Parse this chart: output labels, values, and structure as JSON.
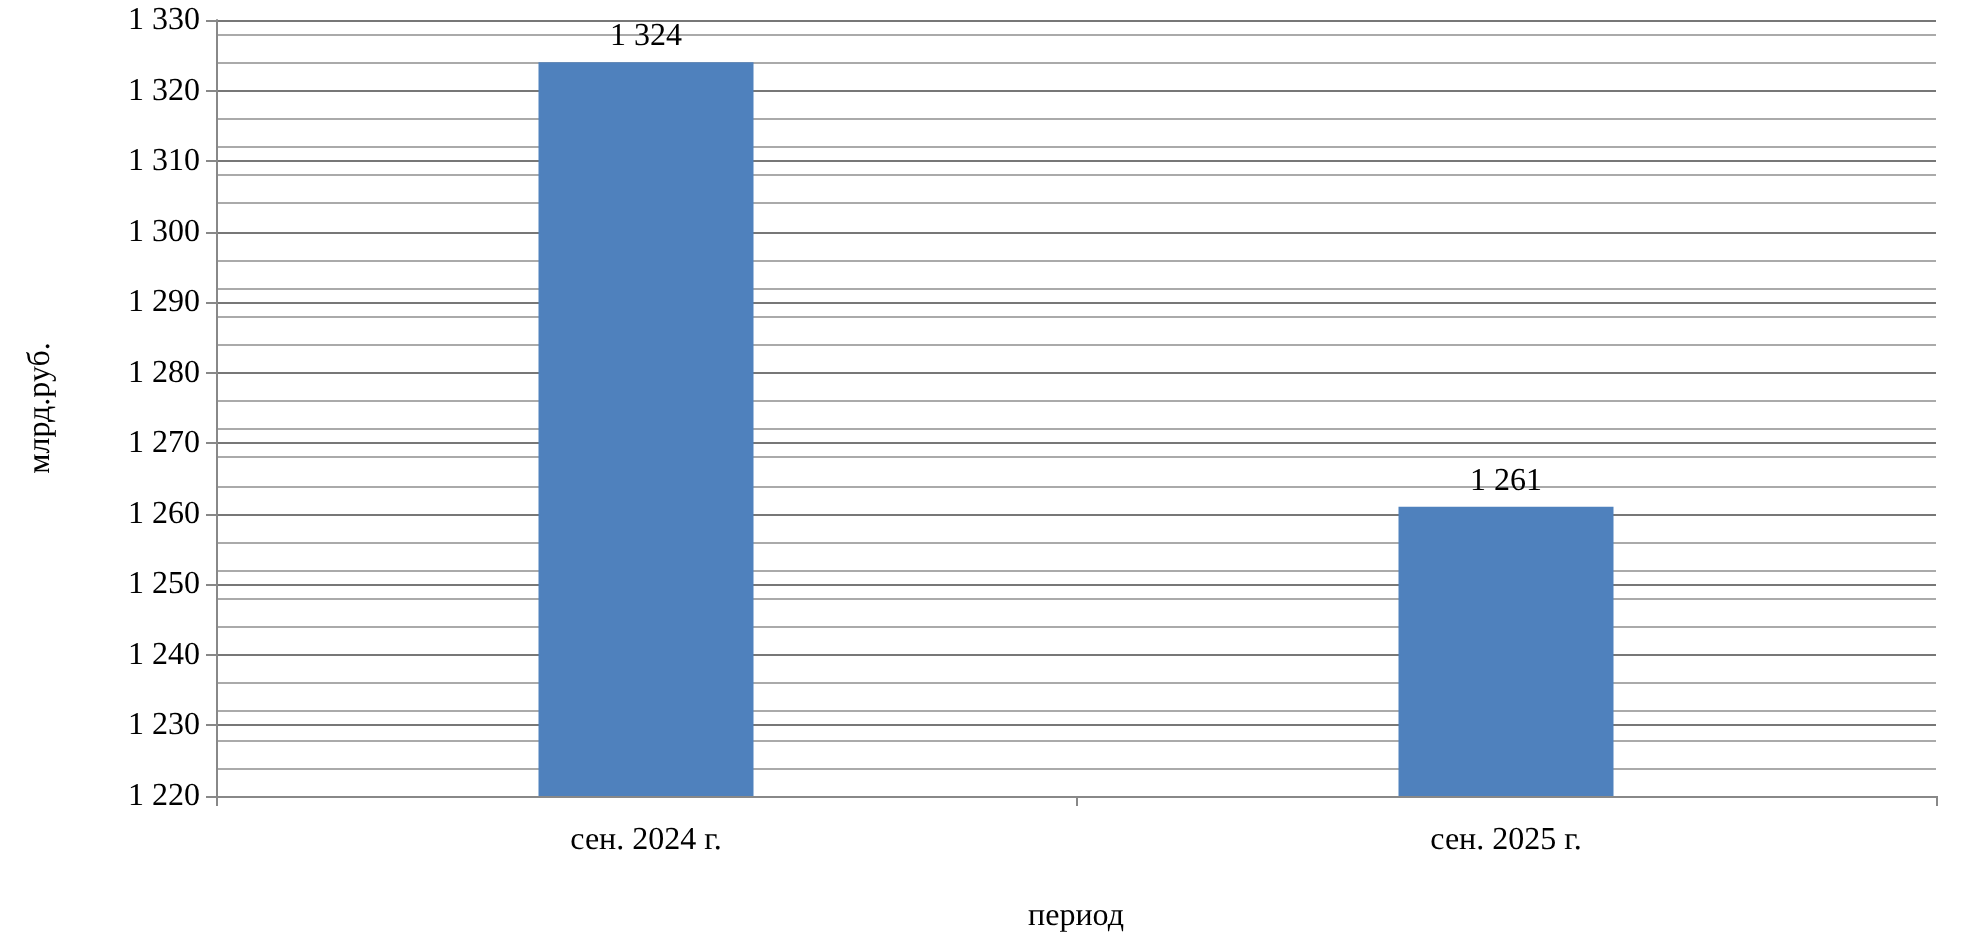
{
  "chart_data": {
    "type": "bar",
    "xlabel": "период",
    "ylabel": "млрд.руб.",
    "categories": [
      "сен. 2024 г.",
      "сен. 2025 г."
    ],
    "values": [
      1324,
      1261
    ],
    "color": "#4f81bd",
    "value_labels": [
      "1 324",
      "1 261"
    ],
    "ylim": [
      1220,
      1330
    ],
    "yticks": [
      {
        "value": 1220,
        "label": "1 220"
      },
      {
        "value": 1230,
        "label": "1 230"
      },
      {
        "value": 1240,
        "label": "1 240"
      },
      {
        "value": 1250,
        "label": "1 250"
      },
      {
        "value": 1260,
        "label": "1 260"
      },
      {
        "value": 1270,
        "label": "1 270"
      },
      {
        "value": 1280,
        "label": "1 280"
      },
      {
        "value": 1290,
        "label": "1 290"
      },
      {
        "value": 1300,
        "label": "1 300"
      },
      {
        "value": 1310,
        "label": "1 310"
      },
      {
        "value": 1320,
        "label": "1 320"
      },
      {
        "value": 1330,
        "label": "1 330"
      }
    ],
    "grid": true
  }
}
